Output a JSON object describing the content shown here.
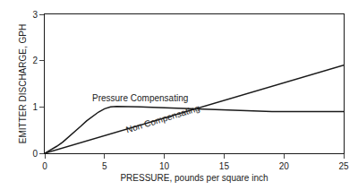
{
  "chart_data": {
    "type": "line",
    "xlabel": "PRESSURE, pounds per square inch",
    "ylabel": "EMITTER DISCHARGE, GPH",
    "xlim": [
      0,
      25
    ],
    "ylim": [
      0,
      3
    ],
    "xticks": [
      0,
      5,
      10,
      15,
      20,
      25
    ],
    "yticks": [
      0,
      1,
      2,
      3
    ],
    "grid": false,
    "color": "#1a1a1a",
    "series": [
      {
        "x": [
          0,
          0.5,
          1,
          1.5,
          2,
          2.5,
          3,
          3.5,
          4,
          4.5,
          5,
          5.5,
          6,
          7,
          8,
          9,
          10,
          11,
          12,
          13,
          14,
          15,
          16,
          17,
          18,
          19,
          20,
          21,
          22,
          23,
          24,
          25
        ],
        "values": [
          0,
          0.07,
          0.15,
          0.24,
          0.35,
          0.47,
          0.58,
          0.7,
          0.8,
          0.89,
          0.96,
          1.0,
          1.01,
          1.01,
          1.0,
          0.99,
          0.98,
          0.97,
          0.96,
          0.95,
          0.94,
          0.93,
          0.92,
          0.91,
          0.91,
          0.9,
          0.9,
          0.9,
          0.9,
          0.9,
          0.9,
          0.9
        ]
      },
      {
        "x": [
          0,
          25
        ],
        "values": [
          0,
          1.9
        ]
      }
    ],
    "annotations": [
      {
        "text": "Pressure Compensating",
        "x": 3.8,
        "y": 1.05
      },
      {
        "text": "Non Compensating",
        "x": 6.5,
        "y": 0.36
      }
    ]
  }
}
